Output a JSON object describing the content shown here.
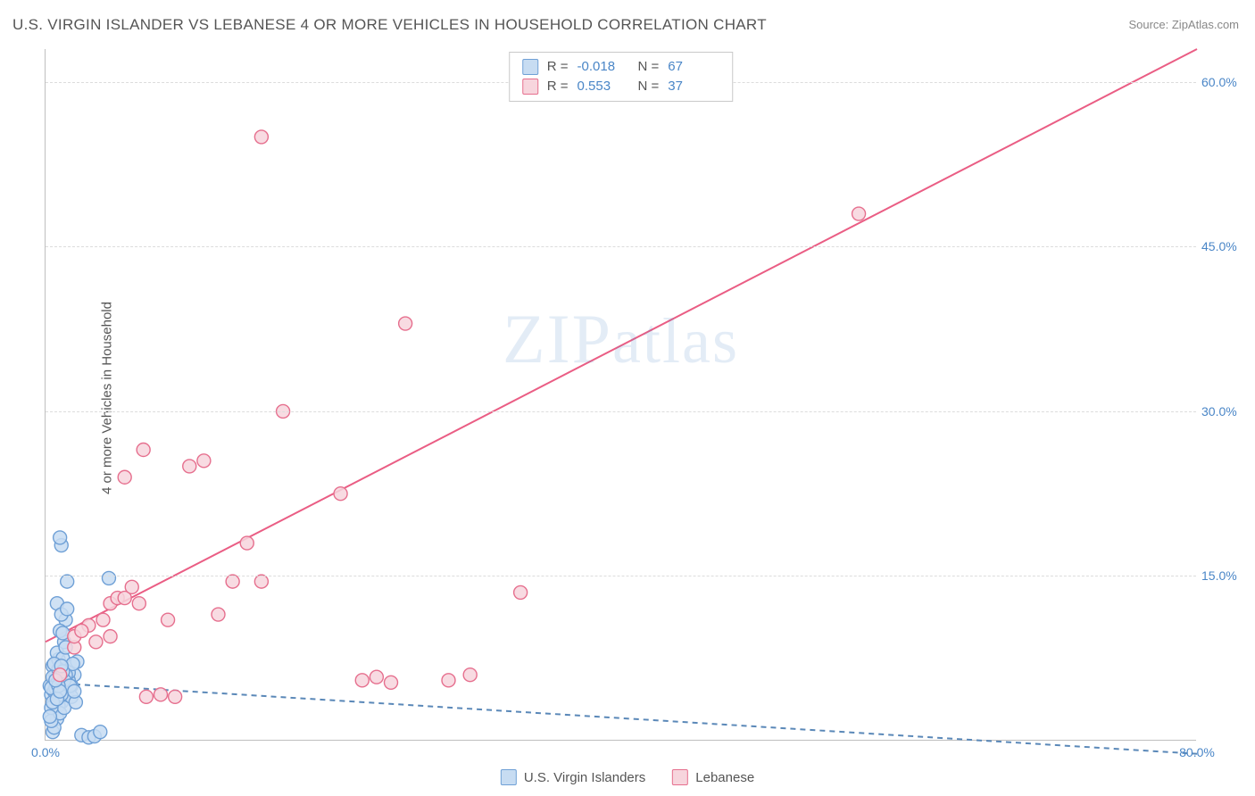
{
  "title": "U.S. VIRGIN ISLANDER VS LEBANESE 4 OR MORE VEHICLES IN HOUSEHOLD CORRELATION CHART",
  "source": "Source: ZipAtlas.com",
  "ylabel": "4 or more Vehicles in Household",
  "watermark": "ZIPatlas",
  "chart": {
    "type": "scatter",
    "xlim": [
      0,
      80
    ],
    "ylim": [
      0,
      63
    ],
    "xticks": [
      {
        "v": 0,
        "label": "0.0%"
      },
      {
        "v": 80,
        "label": "80.0%"
      }
    ],
    "yticks": [
      {
        "v": 15,
        "label": "15.0%"
      },
      {
        "v": 30,
        "label": "30.0%"
      },
      {
        "v": 45,
        "label": "45.0%"
      },
      {
        "v": 60,
        "label": "60.0%"
      }
    ],
    "grid_color": "#dcdcdc",
    "background": "#ffffff",
    "series": [
      {
        "name": "U.S. Virgin Islanders",
        "fill": "#c7dcf2",
        "stroke": "#6fa0d6",
        "line_stroke": "#5a88b8",
        "line_dash": "6,5",
        "R": "-0.018",
        "N": "67",
        "regression": {
          "x1": 0,
          "y1": 5.3,
          "x2": 80,
          "y2": -1.2
        },
        "points": [
          [
            0.3,
            5.0
          ],
          [
            0.4,
            4.2
          ],
          [
            0.5,
            6.8
          ],
          [
            0.6,
            3.1
          ],
          [
            0.7,
            5.5
          ],
          [
            0.8,
            2.0
          ],
          [
            0.9,
            7.4
          ],
          [
            1.0,
            4.0
          ],
          [
            1.1,
            3.5
          ],
          [
            1.2,
            5.2
          ],
          [
            1.3,
            9.0
          ],
          [
            1.4,
            11.0
          ],
          [
            1.3,
            6.5
          ],
          [
            1.5,
            14.5
          ],
          [
            1.1,
            17.8
          ],
          [
            1.0,
            18.5
          ],
          [
            0.8,
            12.5
          ],
          [
            1.5,
            4.5
          ],
          [
            1.8,
            5.0
          ],
          [
            2.0,
            6.0
          ],
          [
            2.2,
            7.2
          ],
          [
            0.5,
            0.8
          ],
          [
            0.6,
            1.2
          ],
          [
            0.4,
            1.8
          ],
          [
            2.5,
            0.5
          ],
          [
            3.0,
            0.3
          ],
          [
            3.4,
            0.4
          ],
          [
            3.8,
            0.8
          ],
          [
            4.4,
            14.8
          ],
          [
            0.9,
            3.2
          ],
          [
            1.0,
            2.5
          ],
          [
            1.3,
            3.0
          ],
          [
            1.6,
            5.5
          ],
          [
            1.8,
            4.0
          ],
          [
            0.7,
            6.0
          ],
          [
            0.8,
            8.0
          ],
          [
            1.2,
            7.5
          ],
          [
            1.4,
            8.5
          ],
          [
            0.6,
            4.5
          ],
          [
            0.5,
            5.8
          ],
          [
            1.0,
            10.0
          ],
          [
            1.1,
            11.5
          ],
          [
            1.5,
            12.0
          ],
          [
            0.4,
            3.0
          ],
          [
            0.3,
            2.2
          ],
          [
            1.6,
            6.2
          ],
          [
            1.9,
            7.0
          ],
          [
            2.1,
            3.5
          ],
          [
            0.9,
            6.5
          ],
          [
            1.2,
            9.8
          ],
          [
            1.4,
            6.0
          ],
          [
            0.7,
            4.8
          ],
          [
            0.8,
            5.2
          ],
          [
            1.0,
            5.8
          ],
          [
            1.1,
            4.2
          ],
          [
            1.3,
            5.5
          ],
          [
            0.6,
            7.0
          ],
          [
            0.5,
            3.5
          ],
          [
            1.7,
            5.0
          ],
          [
            2.0,
            4.5
          ],
          [
            0.4,
            4.8
          ],
          [
            0.9,
            5.0
          ],
          [
            1.2,
            6.3
          ],
          [
            0.8,
            3.8
          ],
          [
            1.0,
            4.5
          ],
          [
            0.7,
            5.5
          ],
          [
            1.1,
            6.8
          ]
        ]
      },
      {
        "name": "Lebanese",
        "fill": "#f7d5dd",
        "stroke": "#e66f8e",
        "line_stroke": "#ea5d84",
        "line_dash": "0",
        "R": "0.553",
        "N": "37",
        "regression": {
          "x1": 0,
          "y1": 9.0,
          "x2": 80,
          "y2": 63.0
        },
        "points": [
          [
            1.0,
            6.0
          ],
          [
            2.0,
            8.5
          ],
          [
            2.0,
            9.5
          ],
          [
            3.0,
            10.5
          ],
          [
            4.0,
            11.0
          ],
          [
            4.5,
            12.5
          ],
          [
            5.0,
            13.0
          ],
          [
            5.5,
            13.0
          ],
          [
            6.0,
            14.0
          ],
          [
            6.5,
            12.5
          ],
          [
            6.8,
            26.5
          ],
          [
            7.0,
            4.0
          ],
          [
            8.0,
            4.2
          ],
          [
            9.0,
            4.0
          ],
          [
            10.0,
            25.0
          ],
          [
            11.0,
            25.5
          ],
          [
            12.0,
            11.5
          ],
          [
            13.0,
            14.5
          ],
          [
            14.0,
            18.0
          ],
          [
            15.0,
            14.5
          ],
          [
            15.0,
            55.0
          ],
          [
            16.5,
            30.0
          ],
          [
            20.5,
            22.5
          ],
          [
            22.0,
            5.5
          ],
          [
            23.0,
            5.8
          ],
          [
            24.0,
            5.3
          ],
          [
            25.0,
            38.0
          ],
          [
            28.0,
            5.5
          ],
          [
            29.5,
            6.0
          ],
          [
            33.0,
            13.5
          ],
          [
            56.5,
            48.0
          ],
          [
            38.0,
            61.5
          ],
          [
            3.5,
            9.0
          ],
          [
            4.5,
            9.5
          ],
          [
            8.5,
            11.0
          ],
          [
            2.5,
            10.0
          ],
          [
            5.5,
            24.0
          ]
        ]
      }
    ]
  },
  "legend_bottom": [
    {
      "label": "U.S. Virgin Islanders",
      "fill": "#c7dcf2",
      "stroke": "#6fa0d6"
    },
    {
      "label": "Lebanese",
      "fill": "#f7d5dd",
      "stroke": "#e66f8e"
    }
  ]
}
